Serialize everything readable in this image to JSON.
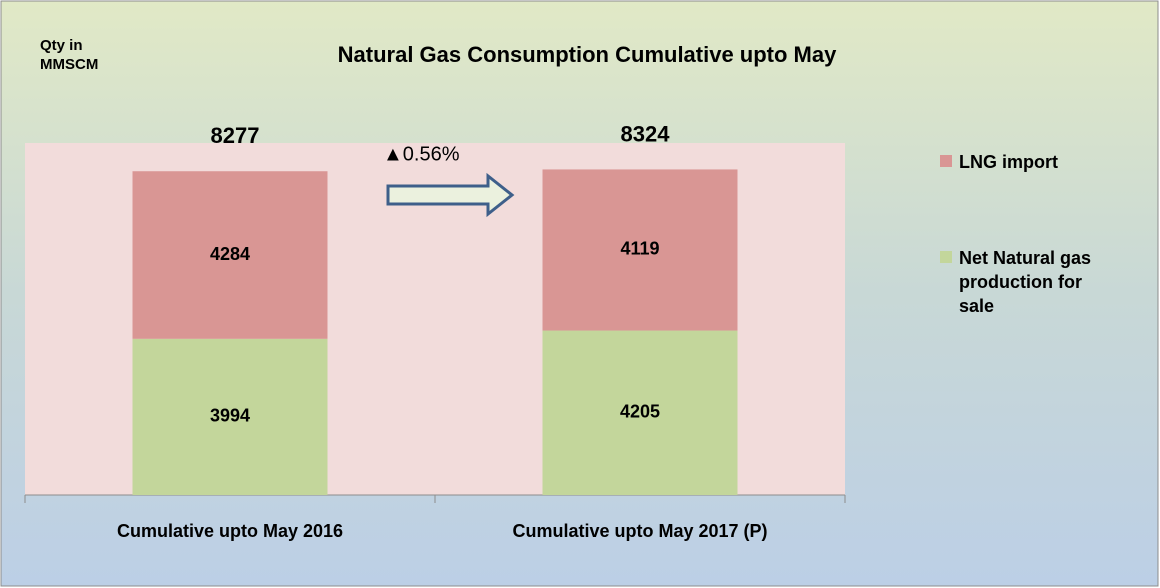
{
  "chart_data": {
    "type": "stacked-bar",
    "title": "Natural Gas Consumption Cumulative upto May",
    "y_label": "Qty in MMSCM",
    "categories": [
      "Cumulative upto May 2016",
      "Cumulative upto May 2017 (P)"
    ],
    "series": [
      {
        "name": "Net Natural gas production for sale",
        "color": "#c3d69b",
        "values": [
          3994,
          4205
        ]
      },
      {
        "name": "LNG import",
        "color": "#d99694",
        "values": [
          4284,
          4119
        ]
      }
    ],
    "totals": [
      8277,
      8324
    ],
    "annotation": "▲0.56%",
    "ylim": [
      0,
      9000
    ]
  }
}
